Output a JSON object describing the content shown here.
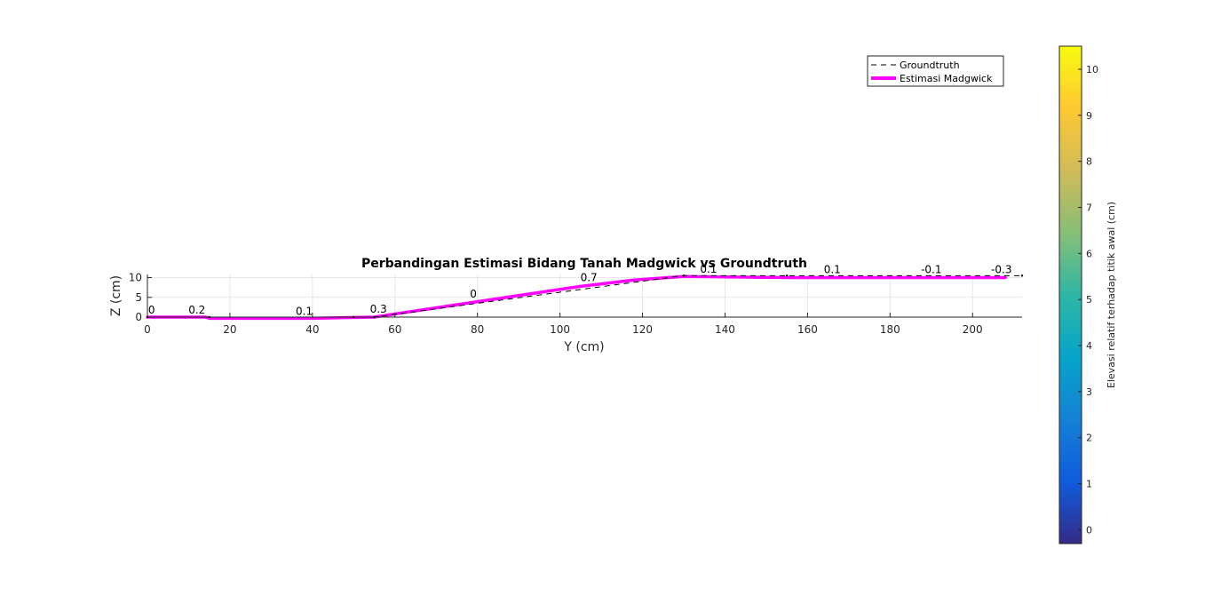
{
  "chart_data": {
    "type": "line",
    "title": "Perbandingan Estimasi Bidang Tanah Madgwick vs Groundtruth",
    "xlabel": "Y (cm)",
    "ylabel": "Z (cm)",
    "xlim": [
      0,
      212
    ],
    "ylim": [
      0,
      10.8
    ],
    "xticks": [
      "0",
      "20",
      "40",
      "60",
      "80",
      "100",
      "120",
      "140",
      "160",
      "180",
      "200"
    ],
    "yticks": [
      "0",
      "5",
      "10"
    ],
    "grid": true,
    "legend_position": "top-right",
    "series": [
      {
        "name": "Groundtruth",
        "style": "dashed",
        "color": "#000000",
        "x": [
          0,
          15,
          50,
          55,
          130,
          155,
          212
        ],
        "y": [
          0,
          0,
          0,
          0,
          10.5,
          10.5,
          10.5
        ]
      },
      {
        "name": "Estimasi Madgwick",
        "style": "solid",
        "color": "#ff00ff",
        "x": [
          0,
          14,
          15,
          40,
          55,
          60,
          80,
          105,
          118,
          130,
          155,
          208
        ],
        "y": [
          0,
          0,
          -0.3,
          -0.3,
          0,
          0.8,
          3.9,
          7.8,
          9.4,
          10.3,
          10,
          10
        ]
      }
    ],
    "point_labels": [
      {
        "text": "0",
        "x": 1,
        "y": 0
      },
      {
        "text": "0.2",
        "x": 12,
        "y": 0
      },
      {
        "text": "0.1",
        "x": 38,
        "y": -0.3
      },
      {
        "text": "0.3",
        "x": 56,
        "y": 0.2
      },
      {
        "text": "0",
        "x": 79,
        "y": 4
      },
      {
        "text": "0.7",
        "x": 107,
        "y": 8.2
      },
      {
        "text": "0.1",
        "x": 136,
        "y": 10.4
      },
      {
        "text": "0.1",
        "x": 166,
        "y": 10.2
      },
      {
        "text": "-0.1",
        "x": 190,
        "y": 10.2
      },
      {
        "text": "-0.3",
        "x": 207,
        "y": 10.2
      }
    ],
    "colorbar": {
      "label": "Elevasi relatif terhadap titik awal (cm)",
      "range": [
        -0.3,
        10.5
      ],
      "ticks": [
        "0",
        "1",
        "2",
        "3",
        "4",
        "5",
        "6",
        "7",
        "8",
        "9",
        "10"
      ],
      "colors": [
        "#352a87",
        "#0f5cdd",
        "#1481d6",
        "#06a4ca",
        "#2eb7a4",
        "#87bf77",
        "#d1bb59",
        "#fec832",
        "#f9fb0e"
      ]
    }
  }
}
